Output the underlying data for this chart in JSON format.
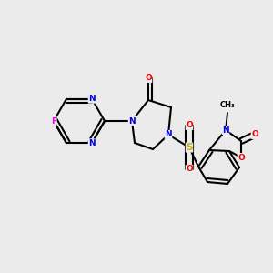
{
  "bg": "#ebebeb",
  "C": "#000000",
  "N": "#0000ee",
  "O": "#ee0000",
  "F": "#ee00ee",
  "S": "#ccaa00",
  "lw": 1.5,
  "fs": 6.5
}
